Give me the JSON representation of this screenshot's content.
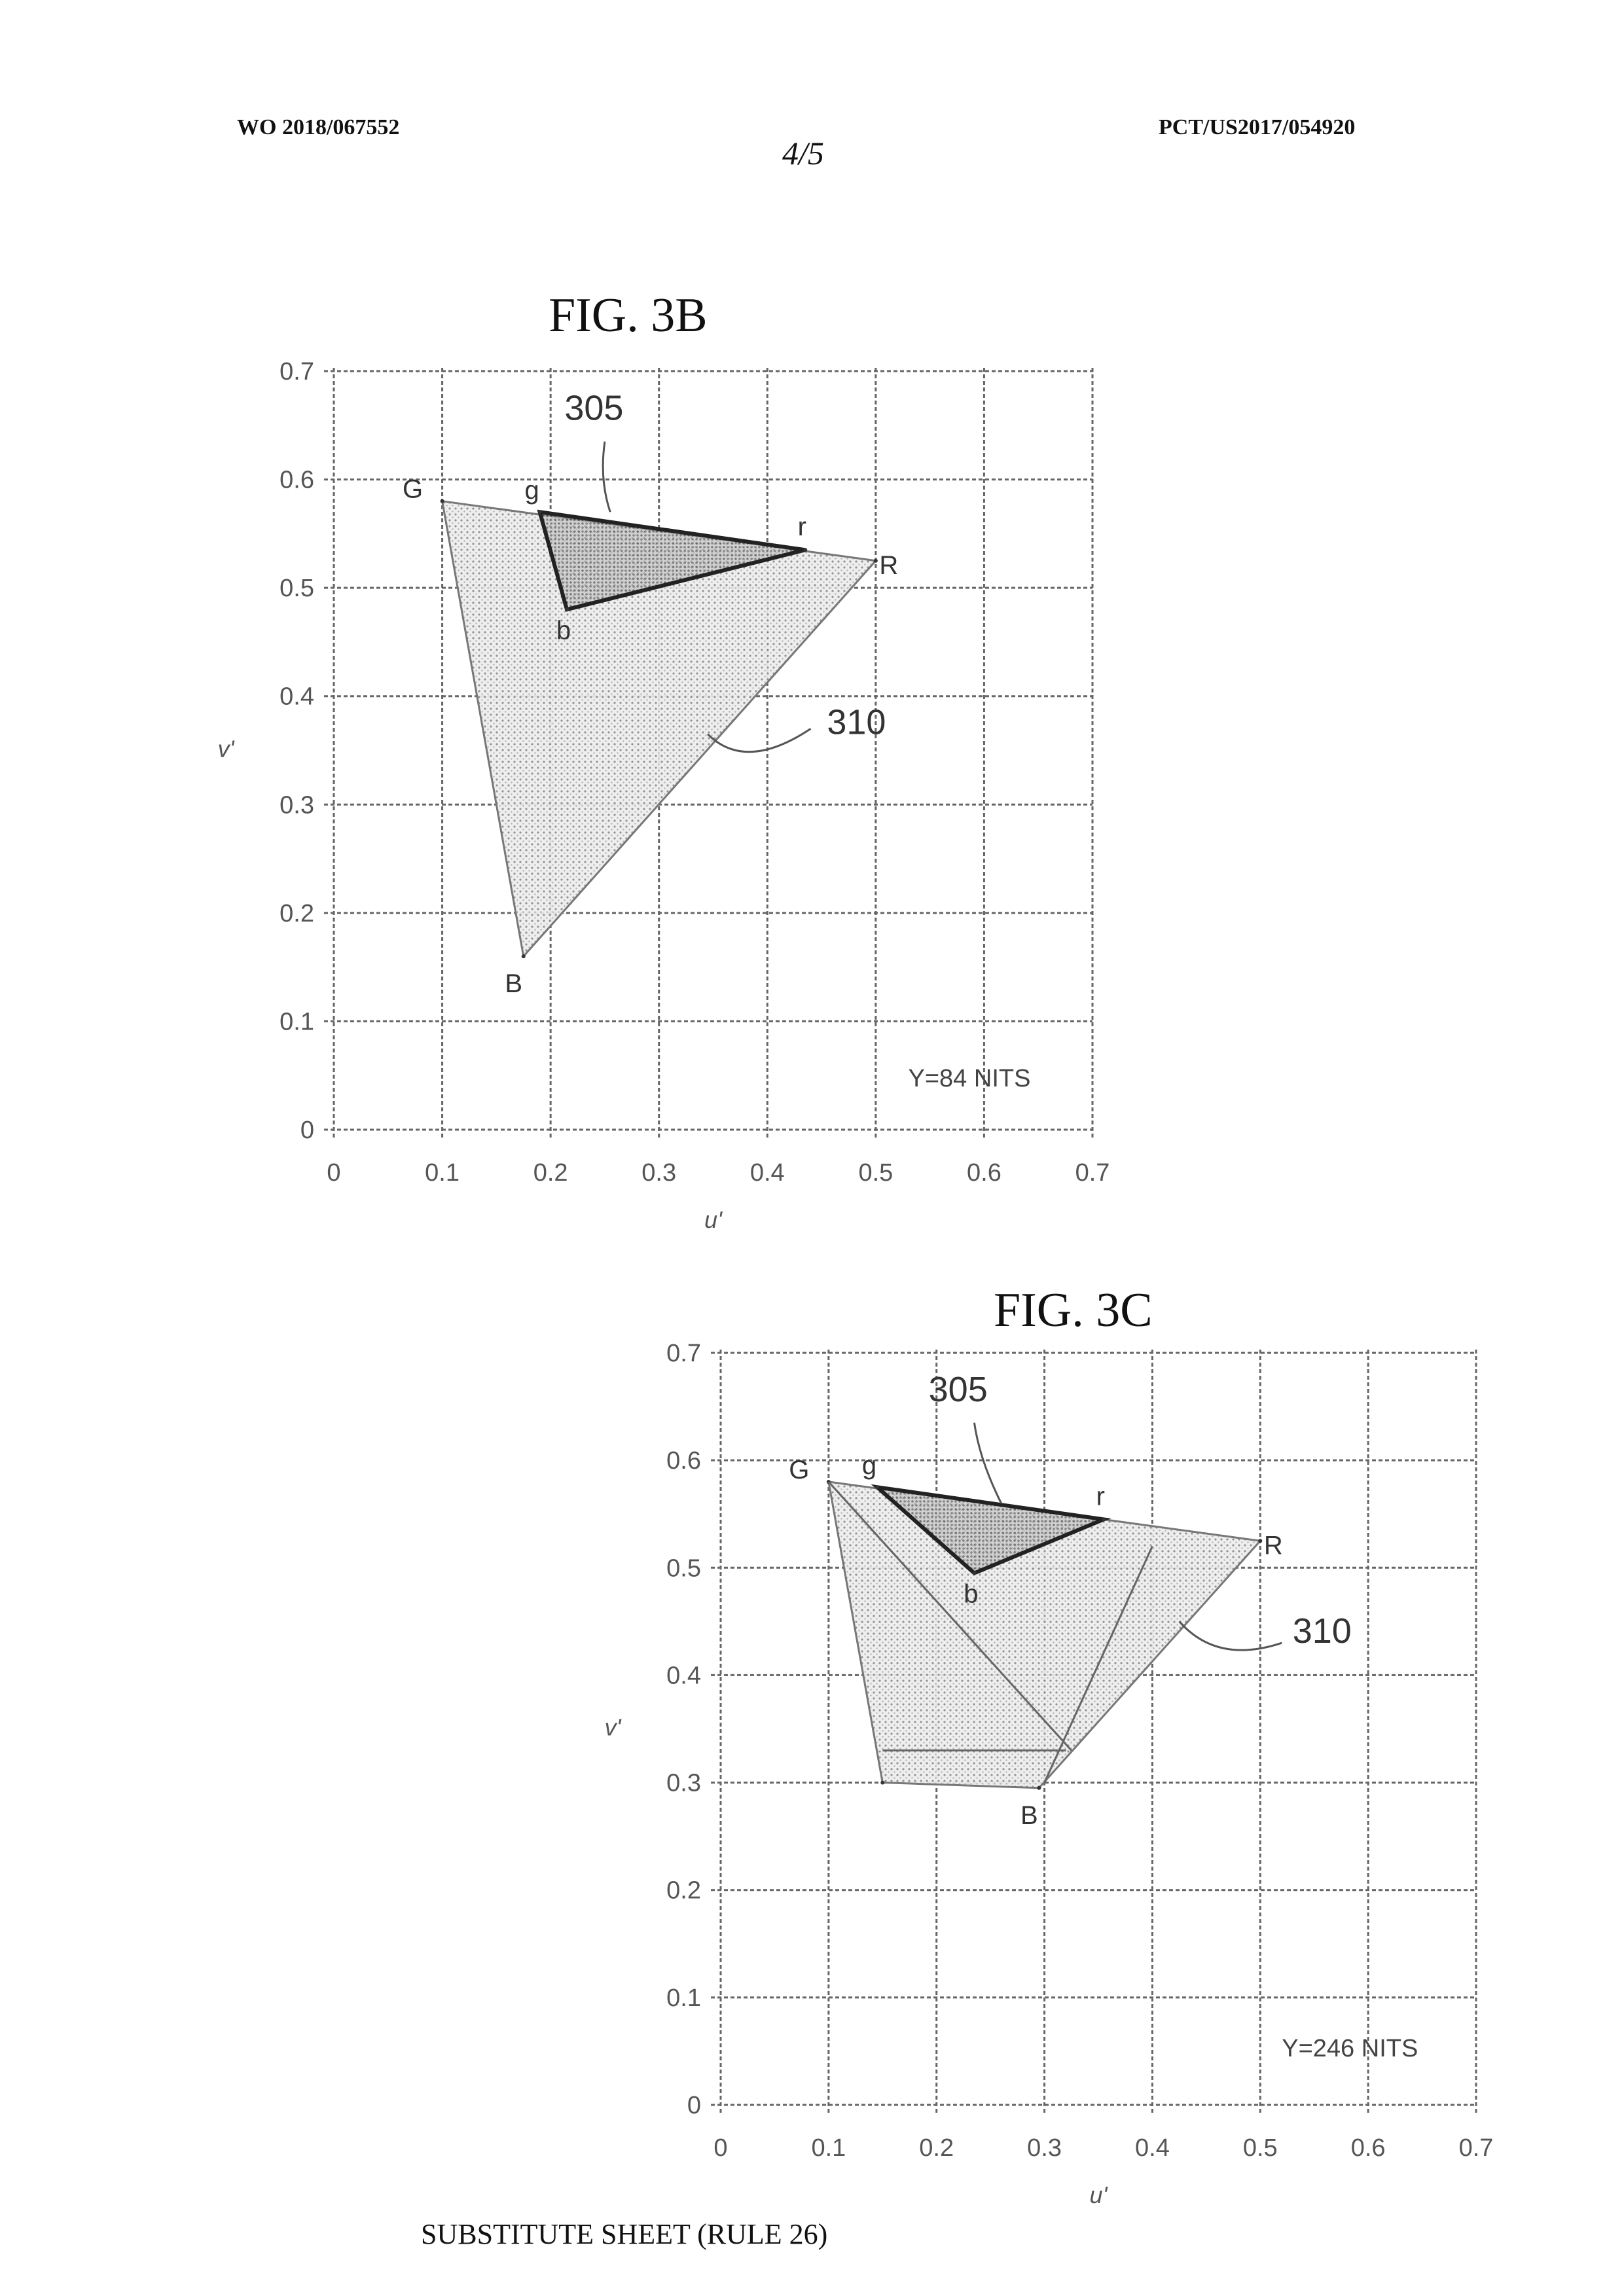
{
  "header": {
    "publication_number": "WO 2018/067552",
    "application_number": "PCT/US2017/054920",
    "sheet": "4/5"
  },
  "footer": "SUBSTITUTE SHEET (RULE 26)",
  "chart_data": [
    {
      "type": "scatter",
      "title": "FIG. 3B",
      "xlabel": "u'",
      "ylabel": "v'",
      "xlim": [
        0,
        0.7
      ],
      "ylim": [
        0,
        0.7
      ],
      "xticks": [
        "0",
        "0.1",
        "0.2",
        "0.3",
        "0.4",
        "0.5",
        "0.6",
        "0.7"
      ],
      "yticks": [
        "0",
        "0.1",
        "0.2",
        "0.3",
        "0.4",
        "0.5",
        "0.6",
        "0.7"
      ],
      "grid": true,
      "annotation": "Y=84 NITS",
      "series": [
        {
          "name": "310",
          "points": [
            {
              "label": "G",
              "u": 0.1,
              "v": 0.58
            },
            {
              "label": "R",
              "u": 0.5,
              "v": 0.525
            },
            {
              "label": "B",
              "u": 0.175,
              "v": 0.16
            }
          ]
        },
        {
          "name": "305",
          "points": [
            {
              "label": "g",
              "u": 0.19,
              "v": 0.57
            },
            {
              "label": "r",
              "u": 0.435,
              "v": 0.535
            },
            {
              "label": "b",
              "u": 0.215,
              "v": 0.48
            }
          ]
        }
      ]
    },
    {
      "type": "scatter",
      "title": "FIG. 3C",
      "xlabel": "u'",
      "ylabel": "v'",
      "xlim": [
        0,
        0.7
      ],
      "ylim": [
        0,
        0.7
      ],
      "xticks": [
        "0",
        "0.1",
        "0.2",
        "0.3",
        "0.4",
        "0.5",
        "0.6",
        "0.7"
      ],
      "yticks": [
        "0",
        "0.1",
        "0.2",
        "0.3",
        "0.4",
        "0.5",
        "0.6",
        "0.7"
      ],
      "grid": true,
      "annotation": "Y=246 NITS",
      "series": [
        {
          "name": "310",
          "points": [
            {
              "label": "G",
              "u": 0.1,
              "v": 0.58
            },
            {
              "label": "R",
              "u": 0.5,
              "v": 0.525
            },
            {
              "label": "B",
              "u": 0.295,
              "v": 0.295
            },
            {
              "label": "",
              "u": 0.15,
              "v": 0.3
            }
          ]
        },
        {
          "name": "305",
          "points": [
            {
              "label": "g",
              "u": 0.145,
              "v": 0.575
            },
            {
              "label": "r",
              "u": 0.355,
              "v": 0.545
            },
            {
              "label": "b",
              "u": 0.235,
              "v": 0.495
            }
          ]
        }
      ]
    }
  ]
}
